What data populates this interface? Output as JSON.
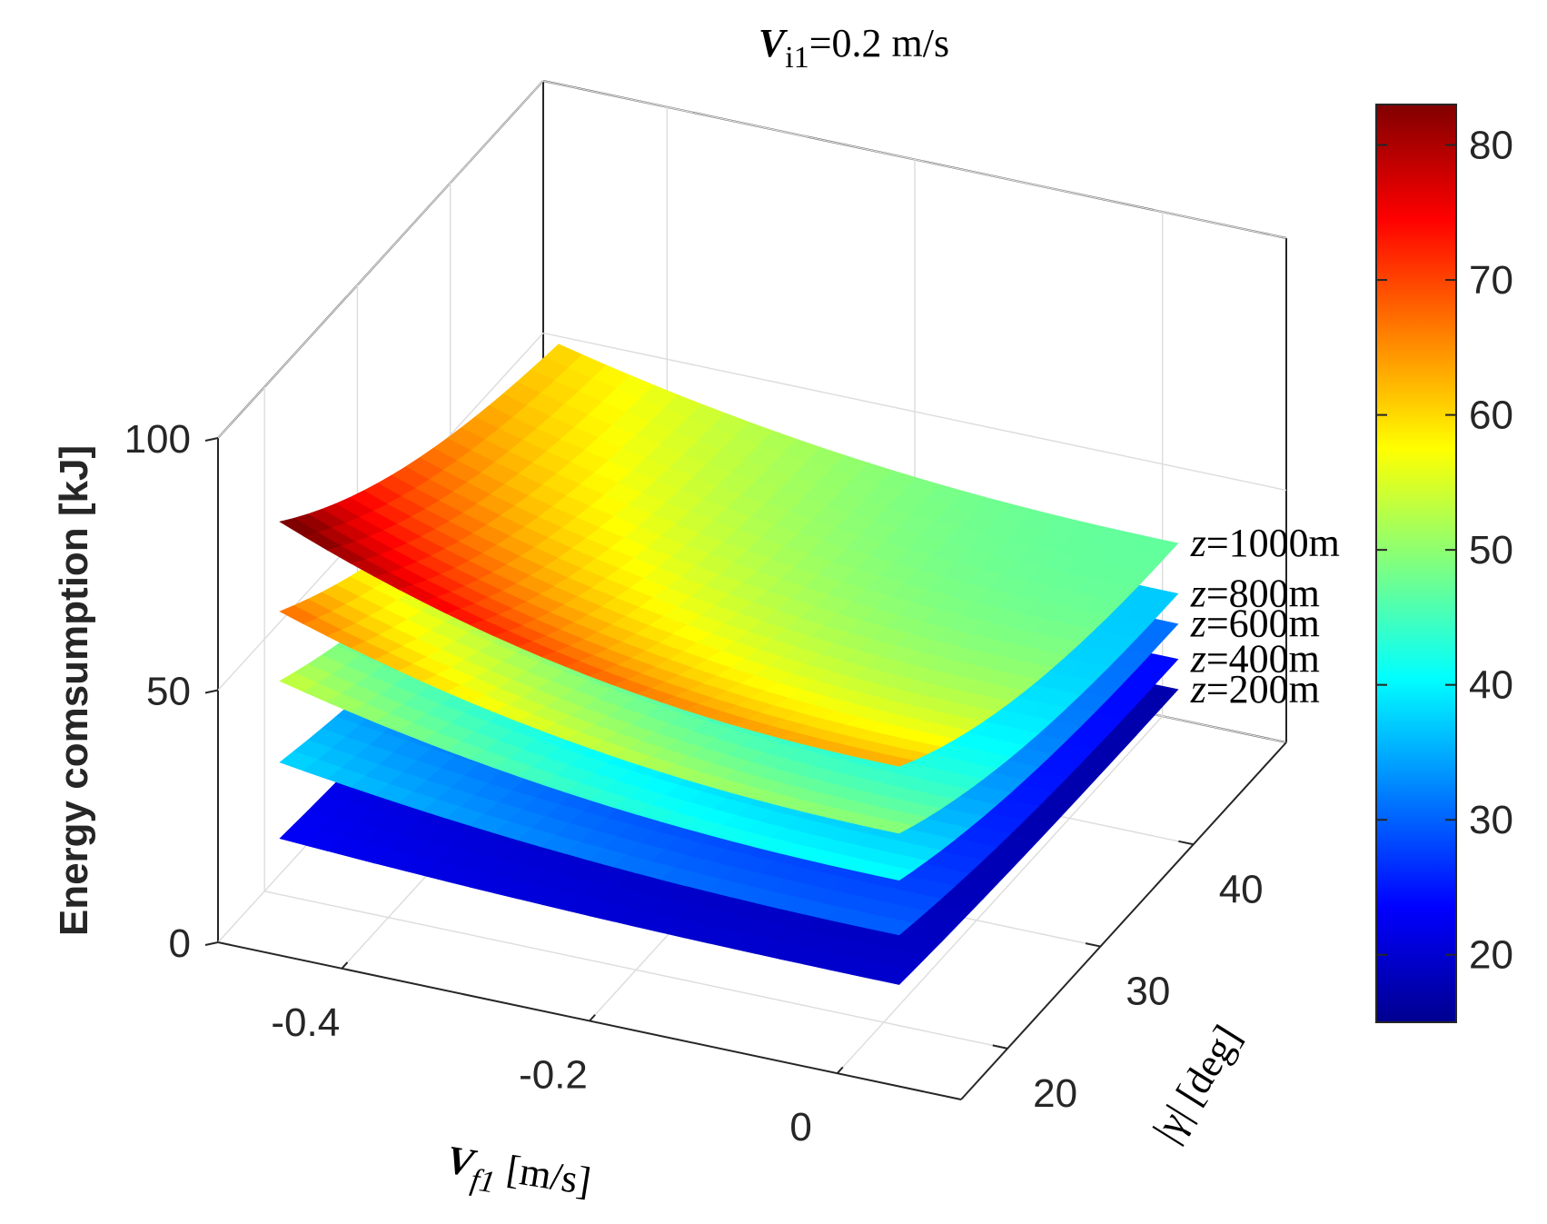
{
  "chart_data": {
    "type": "surface3d",
    "title": {
      "var": "V",
      "sub": "i1",
      "rest": "=0.2 m/s"
    },
    "zlabel": "Energy comsumption [kJ]",
    "xlabel": {
      "var": "V",
      "sub": "f1",
      "rest": " [m/s]"
    },
    "ylabel": {
      "text": "|γ| [deg]"
    },
    "x_ticks": [
      "-0.4",
      "-0.2",
      "0"
    ],
    "y_ticks": [
      "20",
      "30",
      "40"
    ],
    "z_ticks": [
      "0",
      "50",
      "100"
    ],
    "xlim": [
      -0.5,
      0.1
    ],
    "ylim": [
      15,
      50
    ],
    "zlim": [
      0,
      100
    ],
    "x_range": [
      -0.45,
      0.05
    ],
    "y_range": [
      15,
      45
    ],
    "colorbar": {
      "ticks": [
        "20",
        "30",
        "40",
        "50",
        "60",
        "70",
        "80"
      ],
      "min": 15,
      "max": 83
    },
    "series": [
      {
        "name": "z=1000m",
        "depth": 1000,
        "var": "z",
        "eq": "=1000m",
        "base": 47,
        "amp": 30
      },
      {
        "name": "z=800m",
        "depth": 800,
        "var": "z",
        "eq": "=800m",
        "base": 37,
        "amp": 24
      },
      {
        "name": "z=600m",
        "depth": 600,
        "var": "z",
        "eq": "=600m",
        "base": 31,
        "amp": 18
      },
      {
        "name": "z=400m",
        "depth": 400,
        "var": "z",
        "eq": "=400m",
        "base": 24,
        "amp": 11
      },
      {
        "name": "z=200m",
        "depth": 200,
        "var": "z",
        "eq": "=200m",
        "base": 18,
        "amp": 4
      }
    ]
  }
}
